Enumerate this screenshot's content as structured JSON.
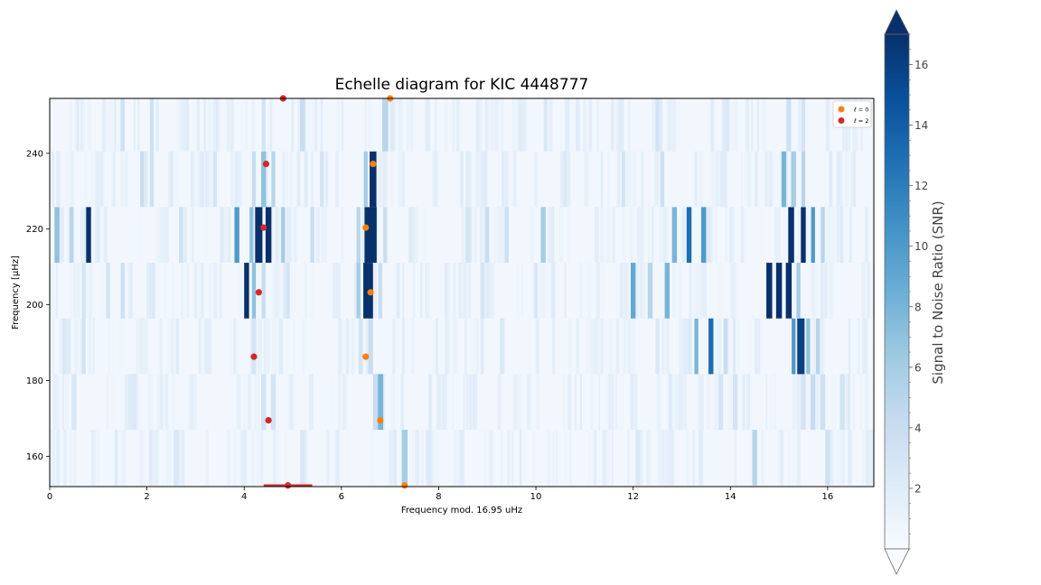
{
  "chart_data": {
    "type": "heatmap",
    "title": "Echelle diagram for KIC 4448777",
    "xlabel": "Frequency mod. 16.95 uHz",
    "ylabel": "Frequency [μHz]",
    "xlim": [
      0,
      16.95
    ],
    "ylim": [
      152,
      254.5
    ],
    "xticks": [
      0,
      2,
      4,
      6,
      8,
      10,
      12,
      14,
      16
    ],
    "yticks": [
      160,
      180,
      200,
      220,
      240
    ],
    "grid": false,
    "legend_position": "top-right",
    "colormap": "Blues",
    "colorbar": {
      "label": "Signal to Noise Ratio (SNR)",
      "range": [
        0,
        17
      ],
      "ticks": [
        2,
        4,
        6,
        8,
        10,
        12,
        14,
        16
      ],
      "extend": "both"
    },
    "rows": [
      {
        "y0": 152.3,
        "y1": 167.0,
        "peaks": [
          {
            "x": 7.3,
            "w": 0.12,
            "v": 6
          },
          {
            "x": 14.5,
            "w": 0.1,
            "v": 5
          },
          {
            "x": 16.0,
            "w": 0.1,
            "v": 3.5
          },
          {
            "x": 12.1,
            "w": 0.1,
            "v": 2.5
          },
          {
            "x": 2.6,
            "w": 0.1,
            "v": 2.5
          },
          {
            "x": 5.2,
            "w": 0.1,
            "v": 2.5
          }
        ]
      },
      {
        "y0": 167.0,
        "y1": 181.7,
        "peaks": [
          {
            "x": 6.8,
            "w": 0.12,
            "v": 8
          },
          {
            "x": 6.7,
            "w": 0.1,
            "v": 4
          },
          {
            "x": 4.4,
            "w": 0.1,
            "v": 3
          },
          {
            "x": 4.6,
            "w": 0.1,
            "v": 3
          },
          {
            "x": 15.7,
            "w": 0.1,
            "v": 4
          },
          {
            "x": 15.9,
            "w": 0.1,
            "v": 3.5
          },
          {
            "x": 15.5,
            "w": 0.1,
            "v": 3
          },
          {
            "x": 13.8,
            "w": 0.1,
            "v": 3
          },
          {
            "x": 14.1,
            "w": 0.1,
            "v": 3
          },
          {
            "x": 0.5,
            "w": 0.1,
            "v": 2.5
          },
          {
            "x": 16.3,
            "w": 0.1,
            "v": 3
          }
        ]
      },
      {
        "y0": 181.7,
        "y1": 196.4,
        "peaks": [
          {
            "x": 15.45,
            "w": 0.15,
            "v": 16
          },
          {
            "x": 15.3,
            "w": 0.08,
            "v": 10
          },
          {
            "x": 15.6,
            "w": 0.08,
            "v": 7
          },
          {
            "x": 15.8,
            "w": 0.08,
            "v": 5
          },
          {
            "x": 13.6,
            "w": 0.1,
            "v": 13
          },
          {
            "x": 13.3,
            "w": 0.08,
            "v": 8
          },
          {
            "x": 13.9,
            "w": 0.08,
            "v": 4
          },
          {
            "x": 6.6,
            "w": 0.1,
            "v": 4
          },
          {
            "x": 6.4,
            "w": 0.08,
            "v": 3
          },
          {
            "x": 4.2,
            "w": 0.08,
            "v": 3
          },
          {
            "x": 0.7,
            "w": 0.08,
            "v": 3
          },
          {
            "x": 0.3,
            "w": 0.08,
            "v": 2.5
          },
          {
            "x": 12.5,
            "w": 0.08,
            "v": 2.5
          },
          {
            "x": 9.3,
            "w": 0.08,
            "v": 2.5
          }
        ]
      },
      {
        "y0": 196.4,
        "y1": 211.1,
        "peaks": [
          {
            "x": 4.05,
            "w": 0.1,
            "v": 17
          },
          {
            "x": 4.2,
            "w": 0.08,
            "v": 7
          },
          {
            "x": 4.4,
            "w": 0.08,
            "v": 4
          },
          {
            "x": 6.55,
            "w": 0.2,
            "v": 17
          },
          {
            "x": 6.35,
            "w": 0.08,
            "v": 6
          },
          {
            "x": 6.8,
            "w": 0.08,
            "v": 4
          },
          {
            "x": 14.8,
            "w": 0.12,
            "v": 17
          },
          {
            "x": 15.0,
            "w": 0.12,
            "v": 17
          },
          {
            "x": 15.2,
            "w": 0.12,
            "v": 17
          },
          {
            "x": 15.4,
            "w": 0.08,
            "v": 6
          },
          {
            "x": 12.0,
            "w": 0.1,
            "v": 9
          },
          {
            "x": 12.35,
            "w": 0.1,
            "v": 5
          },
          {
            "x": 12.7,
            "w": 0.1,
            "v": 8
          },
          {
            "x": 0.7,
            "w": 0.08,
            "v": 3
          },
          {
            "x": 1.5,
            "w": 0.08,
            "v": 3.5
          },
          {
            "x": 1.2,
            "w": 0.08,
            "v": 3
          },
          {
            "x": 4.9,
            "w": 0.08,
            "v": 3
          },
          {
            "x": 8.9,
            "w": 0.08,
            "v": 3
          },
          {
            "x": 10.0,
            "w": 0.08,
            "v": 2.5
          }
        ]
      },
      {
        "y0": 211.1,
        "y1": 225.8,
        "peaks": [
          {
            "x": 0.8,
            "w": 0.1,
            "v": 17
          },
          {
            "x": 0.15,
            "w": 0.1,
            "v": 7
          },
          {
            "x": 0.45,
            "w": 0.08,
            "v": 5
          },
          {
            "x": 4.3,
            "w": 0.15,
            "v": 17
          },
          {
            "x": 4.5,
            "w": 0.12,
            "v": 17
          },
          {
            "x": 3.85,
            "w": 0.1,
            "v": 10
          },
          {
            "x": 4.15,
            "w": 0.08,
            "v": 7
          },
          {
            "x": 4.8,
            "w": 0.08,
            "v": 6
          },
          {
            "x": 5.4,
            "w": 0.08,
            "v": 4
          },
          {
            "x": 6.6,
            "w": 0.25,
            "v": 17
          },
          {
            "x": 6.35,
            "w": 0.08,
            "v": 5
          },
          {
            "x": 6.9,
            "w": 0.08,
            "v": 4
          },
          {
            "x": 15.25,
            "w": 0.12,
            "v": 17
          },
          {
            "x": 15.5,
            "w": 0.1,
            "v": 17
          },
          {
            "x": 15.7,
            "w": 0.08,
            "v": 10
          },
          {
            "x": 15.9,
            "w": 0.08,
            "v": 5
          },
          {
            "x": 13.15,
            "w": 0.1,
            "v": 13
          },
          {
            "x": 13.45,
            "w": 0.1,
            "v": 10
          },
          {
            "x": 12.85,
            "w": 0.1,
            "v": 8
          },
          {
            "x": 10.15,
            "w": 0.1,
            "v": 6
          },
          {
            "x": 9.0,
            "w": 0.08,
            "v": 4
          },
          {
            "x": 9.4,
            "w": 0.08,
            "v": 3.5
          },
          {
            "x": 8.6,
            "w": 0.08,
            "v": 3
          },
          {
            "x": 2.7,
            "w": 0.08,
            "v": 3.5
          }
        ]
      },
      {
        "y0": 225.8,
        "y1": 240.5,
        "peaks": [
          {
            "x": 6.65,
            "w": 0.14,
            "v": 17
          },
          {
            "x": 6.5,
            "w": 0.08,
            "v": 6
          },
          {
            "x": 4.4,
            "w": 0.1,
            "v": 7
          },
          {
            "x": 4.6,
            "w": 0.08,
            "v": 5
          },
          {
            "x": 4.2,
            "w": 0.08,
            "v": 4
          },
          {
            "x": 15.1,
            "w": 0.1,
            "v": 8
          },
          {
            "x": 15.3,
            "w": 0.1,
            "v": 6
          },
          {
            "x": 15.5,
            "w": 0.08,
            "v": 5
          },
          {
            "x": 12.6,
            "w": 0.08,
            "v": 3.5
          },
          {
            "x": 11.8,
            "w": 0.08,
            "v": 3
          },
          {
            "x": 1.9,
            "w": 0.08,
            "v": 4
          },
          {
            "x": 2.1,
            "w": 0.08,
            "v": 3.5
          },
          {
            "x": 3.4,
            "w": 0.08,
            "v": 3
          },
          {
            "x": 5.6,
            "w": 0.08,
            "v": 3
          },
          {
            "x": 10.6,
            "w": 0.08,
            "v": 2.5
          }
        ]
      },
      {
        "y0": 240.5,
        "y1": 254.5,
        "peaks": [
          {
            "x": 6.9,
            "w": 0.12,
            "v": 5
          },
          {
            "x": 5.2,
            "w": 0.1,
            "v": 4
          },
          {
            "x": 4.4,
            "w": 0.08,
            "v": 3
          },
          {
            "x": 1.5,
            "w": 0.08,
            "v": 3.5
          },
          {
            "x": 2.1,
            "w": 0.08,
            "v": 3.5
          },
          {
            "x": 15.2,
            "w": 0.1,
            "v": 3.5
          },
          {
            "x": 15.5,
            "w": 0.08,
            "v": 3
          },
          {
            "x": 12.5,
            "w": 0.08,
            "v": 3
          },
          {
            "x": 10.2,
            "w": 0.08,
            "v": 2.5
          }
        ]
      }
    ],
    "series": [
      {
        "name": "ℓ = 0",
        "color": "#ff7f0e",
        "points": [
          [
            7.3,
            152.3
          ],
          [
            6.8,
            169.5
          ],
          [
            6.5,
            186.3
          ],
          [
            6.6,
            203.3
          ],
          [
            6.5,
            220.4
          ],
          [
            6.65,
            237.2
          ],
          [
            7.0,
            254.5
          ]
        ]
      },
      {
        "name": "ℓ = 2",
        "color": "#d62728",
        "points": [
          [
            4.9,
            152.3
          ],
          [
            4.5,
            169.5
          ],
          [
            4.2,
            186.3
          ],
          [
            4.3,
            203.3
          ],
          [
            4.4,
            220.4
          ],
          [
            4.45,
            237.2
          ],
          [
            4.8,
            254.5
          ]
        ]
      }
    ],
    "annotations": [
      {
        "kind": "segment",
        "color": "#d62728",
        "x": [
          4.4,
          5.4
        ],
        "y": 152.3
      }
    ]
  }
}
